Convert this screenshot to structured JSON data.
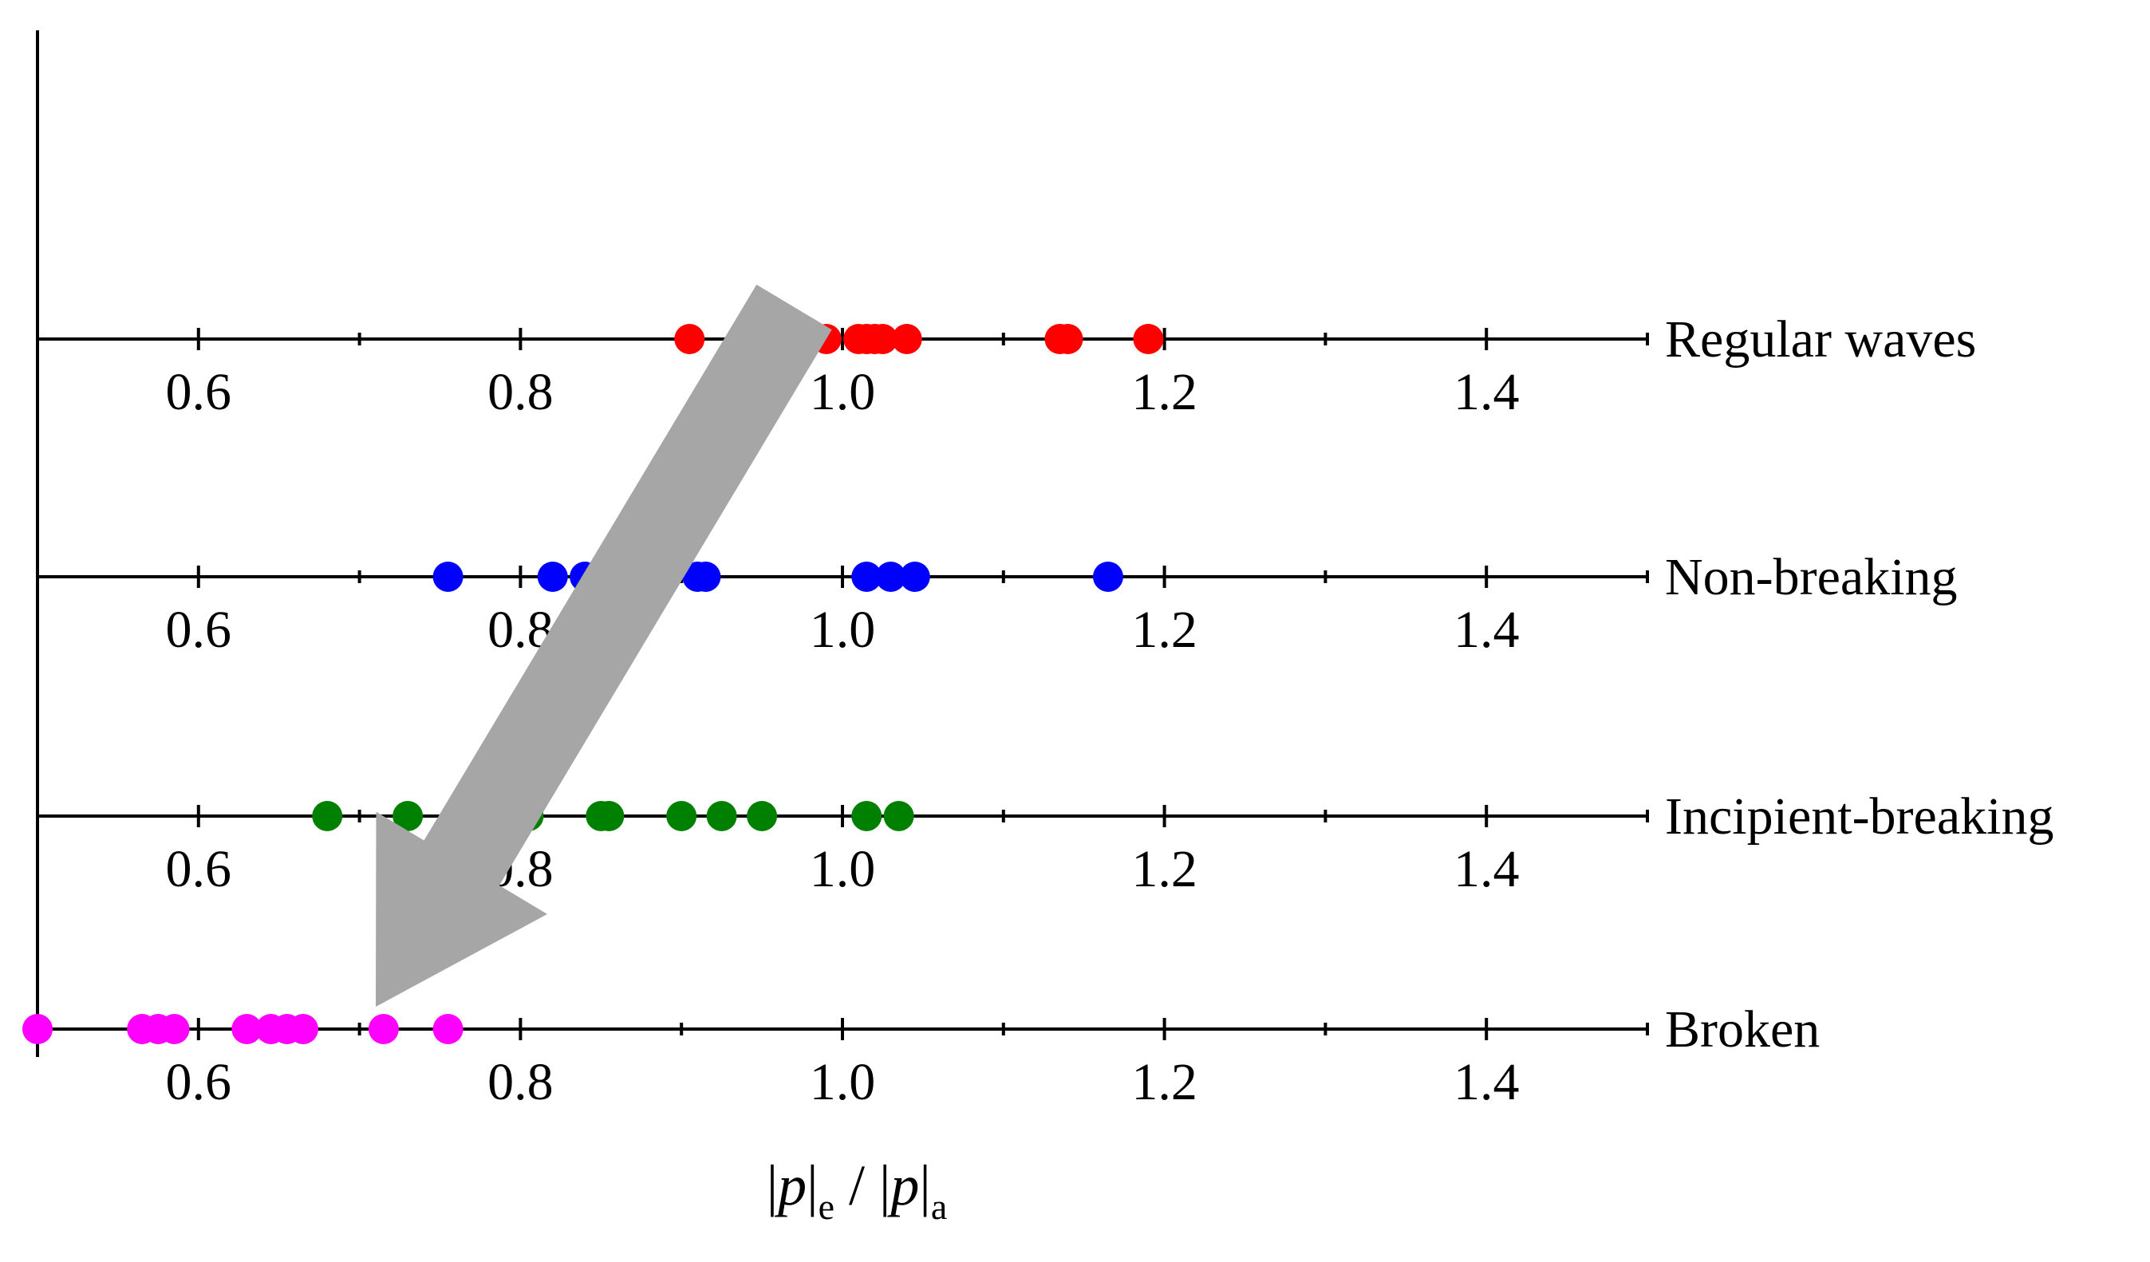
{
  "chart_data": {
    "type": "scatter",
    "xlim": [
      0.5,
      1.5
    ],
    "ticks": [
      "0.6",
      "0.8",
      "1.0",
      "1.2",
      "1.4"
    ],
    "xlabel": {
      "bar1": "|",
      "p1": "p",
      "bar2": "|",
      "sub1": "e",
      "slash": " / ",
      "bar3": "|",
      "p2": "p",
      "bar4": "|",
      "sub2": "a"
    },
    "arrow": {
      "from": [
        0.97,
        3
      ],
      "to": [
        0.72,
        0
      ],
      "color": "#a6a6a6"
    },
    "series": [
      {
        "name": "Regular waves",
        "color": "#ff0000",
        "values": [
          0.905,
          0.94,
          0.96,
          0.965,
          0.97,
          0.975,
          0.99,
          1.01,
          1.015,
          1.02,
          1.025,
          1.04,
          1.135,
          1.14,
          1.19
        ]
      },
      {
        "name": "Non-breaking",
        "color": "#0000ff",
        "values": [
          0.755,
          0.82,
          0.84,
          0.88,
          0.91,
          0.915,
          1.015,
          1.03,
          1.045,
          1.165
        ]
      },
      {
        "name": "Incipient-breaking",
        "color": "#008000",
        "values": [
          0.68,
          0.73,
          0.79,
          0.805,
          0.85,
          0.855,
          0.9,
          0.925,
          0.95,
          1.015,
          1.035
        ]
      },
      {
        "name": "Broken",
        "color": "#ff00ff",
        "values": [
          0.5,
          0.565,
          0.575,
          0.585,
          0.63,
          0.645,
          0.655,
          0.665,
          0.715,
          0.755
        ]
      }
    ]
  }
}
